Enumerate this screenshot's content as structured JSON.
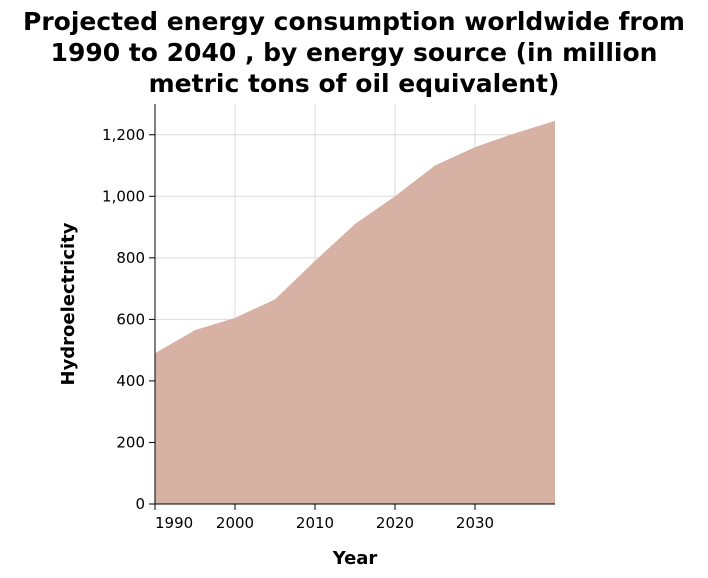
{
  "chart_data": {
    "type": "area",
    "title_lines": [
      "Projected energy consumption worldwide from",
      "1990 to 2040 , by energy source (in million",
      "metric tons of oil equivalent)"
    ],
    "xlabel": "Year",
    "ylabel": "Hydroelectricity",
    "x_ticks": [
      1990,
      2000,
      2010,
      2020,
      2030
    ],
    "x_tick_labels": [
      "1990",
      "2000",
      "2010",
      "2020",
      "2030"
    ],
    "y_ticks": [
      0,
      200,
      400,
      600,
      800,
      1000,
      1200
    ],
    "y_tick_labels": [
      "0",
      "200",
      "400",
      "600",
      "800",
      "1,000",
      "1,200"
    ],
    "xlim": [
      1990,
      2040
    ],
    "ylim": [
      0,
      1300
    ],
    "grid": true,
    "series": [
      {
        "x": [
          1990,
          1995,
          2000,
          2005,
          2010,
          2015,
          2020,
          2025,
          2030,
          2035,
          2040
        ],
        "values": [
          490,
          565,
          605,
          665,
          790,
          910,
          1000,
          1100,
          1160,
          1205,
          1245
        ],
        "color": "#d7b2a4"
      }
    ]
  }
}
